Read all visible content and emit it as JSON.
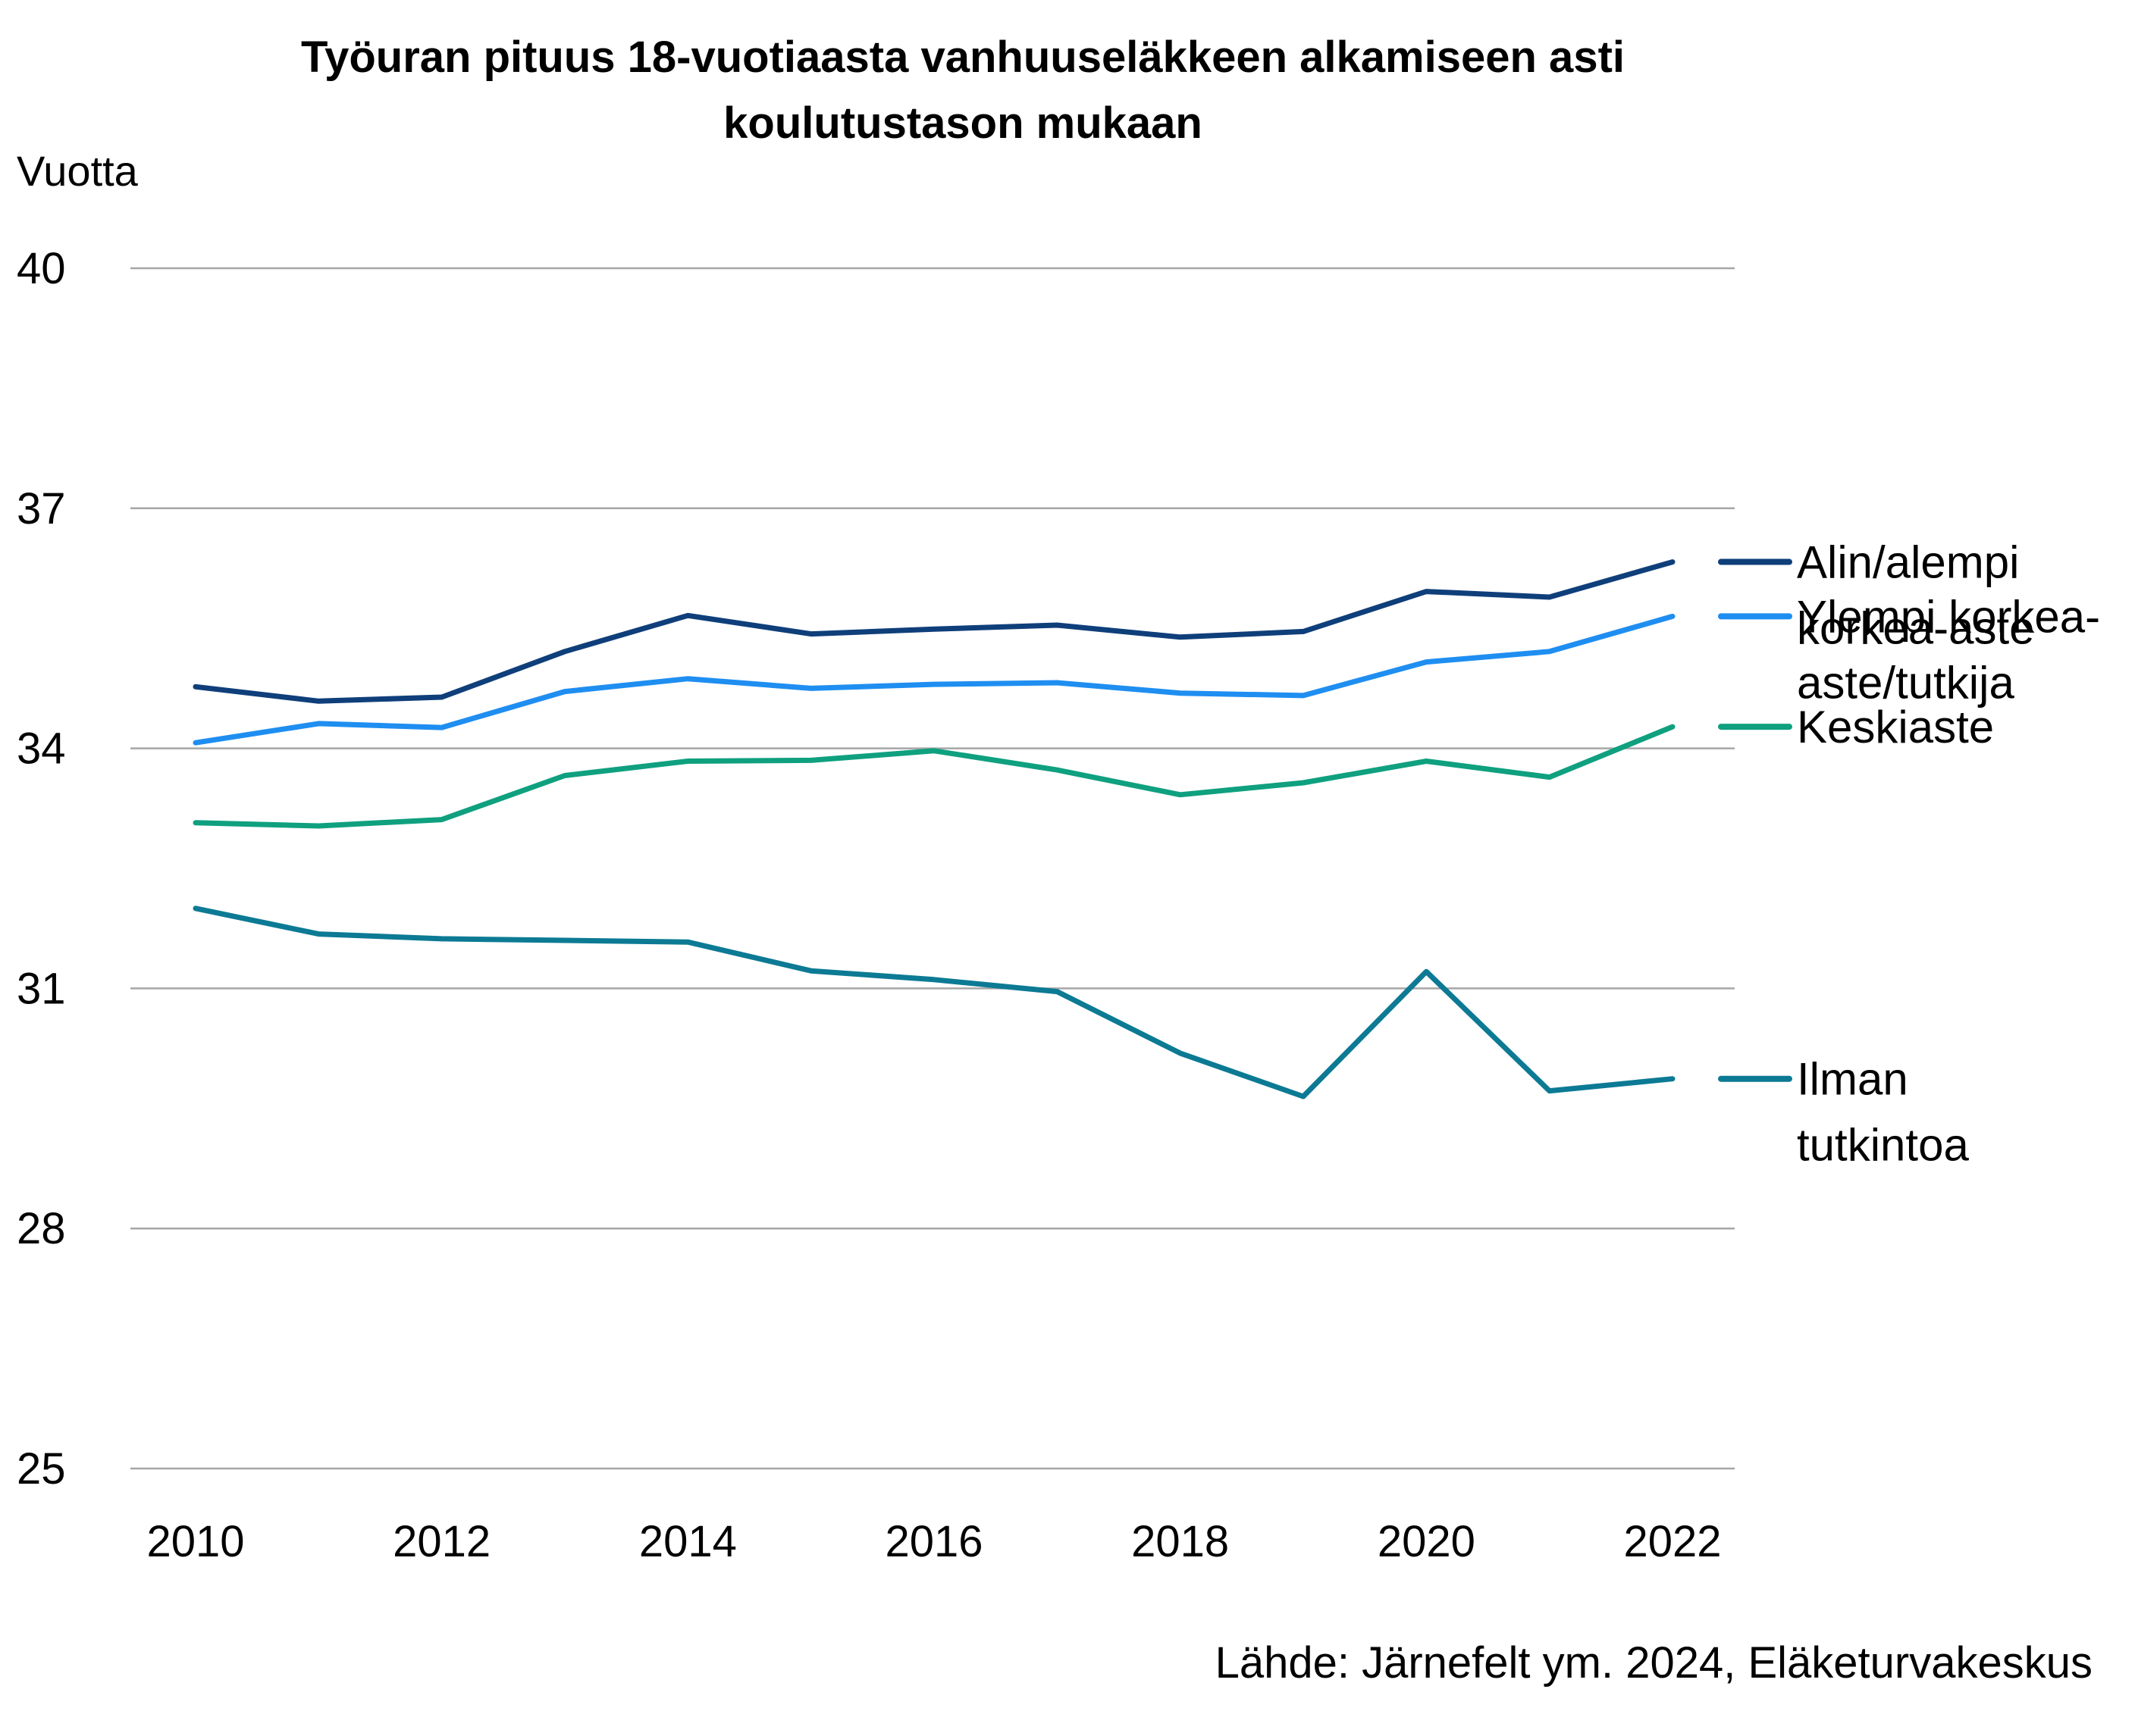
{
  "chart_data": {
    "type": "line",
    "title_lines": [
      "Työuran pituus 18-vuotiaasta vanhuuseläkkeen alkamiseen asti",
      "koulutustason mukaan"
    ],
    "ylabel": "Vuotta",
    "xlabel": "",
    "x": [
      2010,
      2011,
      2012,
      2013,
      2014,
      2015,
      2016,
      2017,
      2018,
      2019,
      2020,
      2021,
      2022
    ],
    "x_tick_labels": [
      "2010",
      "2012",
      "2014",
      "2016",
      "2018",
      "2020",
      "2022"
    ],
    "ylim": [
      25,
      40
    ],
    "y_ticks": [
      25,
      28,
      31,
      34,
      37,
      40
    ],
    "grid": true,
    "legend_position": "right",
    "series": [
      {
        "name": "Alin/alempi korkea-aste",
        "legend_lines": [
          "Alin/alempi",
          "korkea-aste"
        ],
        "color": "#0f3f7a",
        "values": [
          34.77,
          34.59,
          34.64,
          35.21,
          35.66,
          35.43,
          35.49,
          35.54,
          35.39,
          35.46,
          35.96,
          35.89,
          36.33
        ]
      },
      {
        "name": "Ylempi korkea-aste/tutkija",
        "legend_lines": [
          "Ylempi korkea-",
          "aste/tutkija"
        ],
        "color": "#1f8ef1",
        "values": [
          34.07,
          34.31,
          34.26,
          34.71,
          34.87,
          34.75,
          34.8,
          34.82,
          34.69,
          34.66,
          35.08,
          35.21,
          35.65
        ]
      },
      {
        "name": "Keskiaste",
        "legend_lines": [
          "Keskiaste"
        ],
        "color": "#0fa07f",
        "values": [
          33.07,
          33.03,
          33.11,
          33.66,
          33.84,
          33.85,
          33.97,
          33.73,
          33.42,
          33.57,
          33.84,
          33.64,
          34.27
        ]
      },
      {
        "name": "Ilman tutkintoa",
        "legend_lines": [
          "Ilman",
          "tutkintoa"
        ],
        "color": "#0c7a94",
        "values": [
          32.0,
          31.68,
          31.62,
          31.6,
          31.58,
          31.22,
          31.11,
          30.96,
          30.19,
          29.65,
          31.21,
          29.72,
          29.87
        ]
      }
    ],
    "source": "Lähde: Järnefelt ym. 2024, Eläketurvakeskus"
  }
}
